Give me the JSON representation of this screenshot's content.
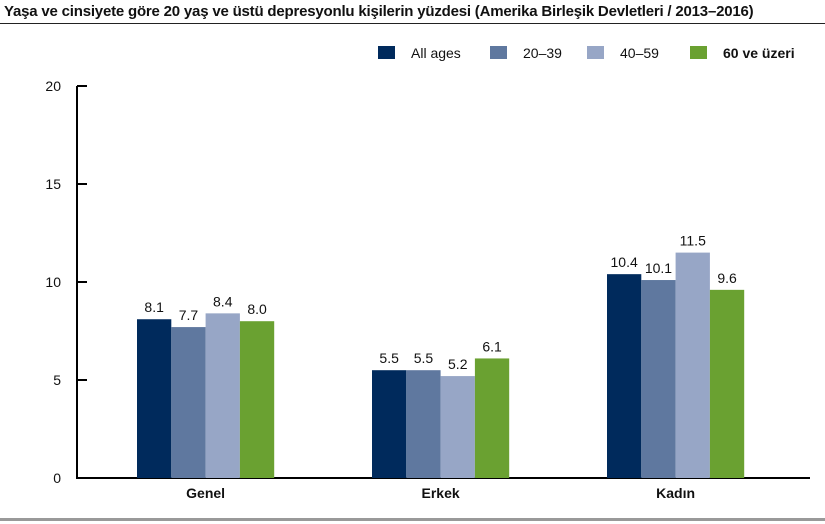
{
  "chart_data": {
    "type": "bar",
    "title": "Yaşa ve cinsiyete göre 20 yaş ve üstü depresyonlu kişilerin yüzdesi (Amerika Birleşik Devletleri / 2013–2016)",
    "categories": [
      "Genel",
      "Erkek",
      "Kadın"
    ],
    "series": [
      {
        "name": "All ages",
        "color": "#002a5c",
        "values": [
          8.1,
          5.5,
          10.4
        ]
      },
      {
        "name": "20–39",
        "color": "#5f789f",
        "values": [
          7.7,
          5.5,
          10.1
        ]
      },
      {
        "name": "40–59",
        "color": "#97a6c6",
        "values": [
          8.4,
          5.2,
          11.5
        ]
      },
      {
        "name": "60 ve üzeri",
        "color": "#6aa131",
        "values": [
          8.0,
          6.1,
          9.6
        ]
      }
    ],
    "ylim": [
      0,
      20
    ],
    "yticks": [
      "0",
      "5",
      "10",
      "15",
      "20"
    ],
    "xlabel": "",
    "ylabel": "",
    "grid": false,
    "legend": "top-right"
  }
}
